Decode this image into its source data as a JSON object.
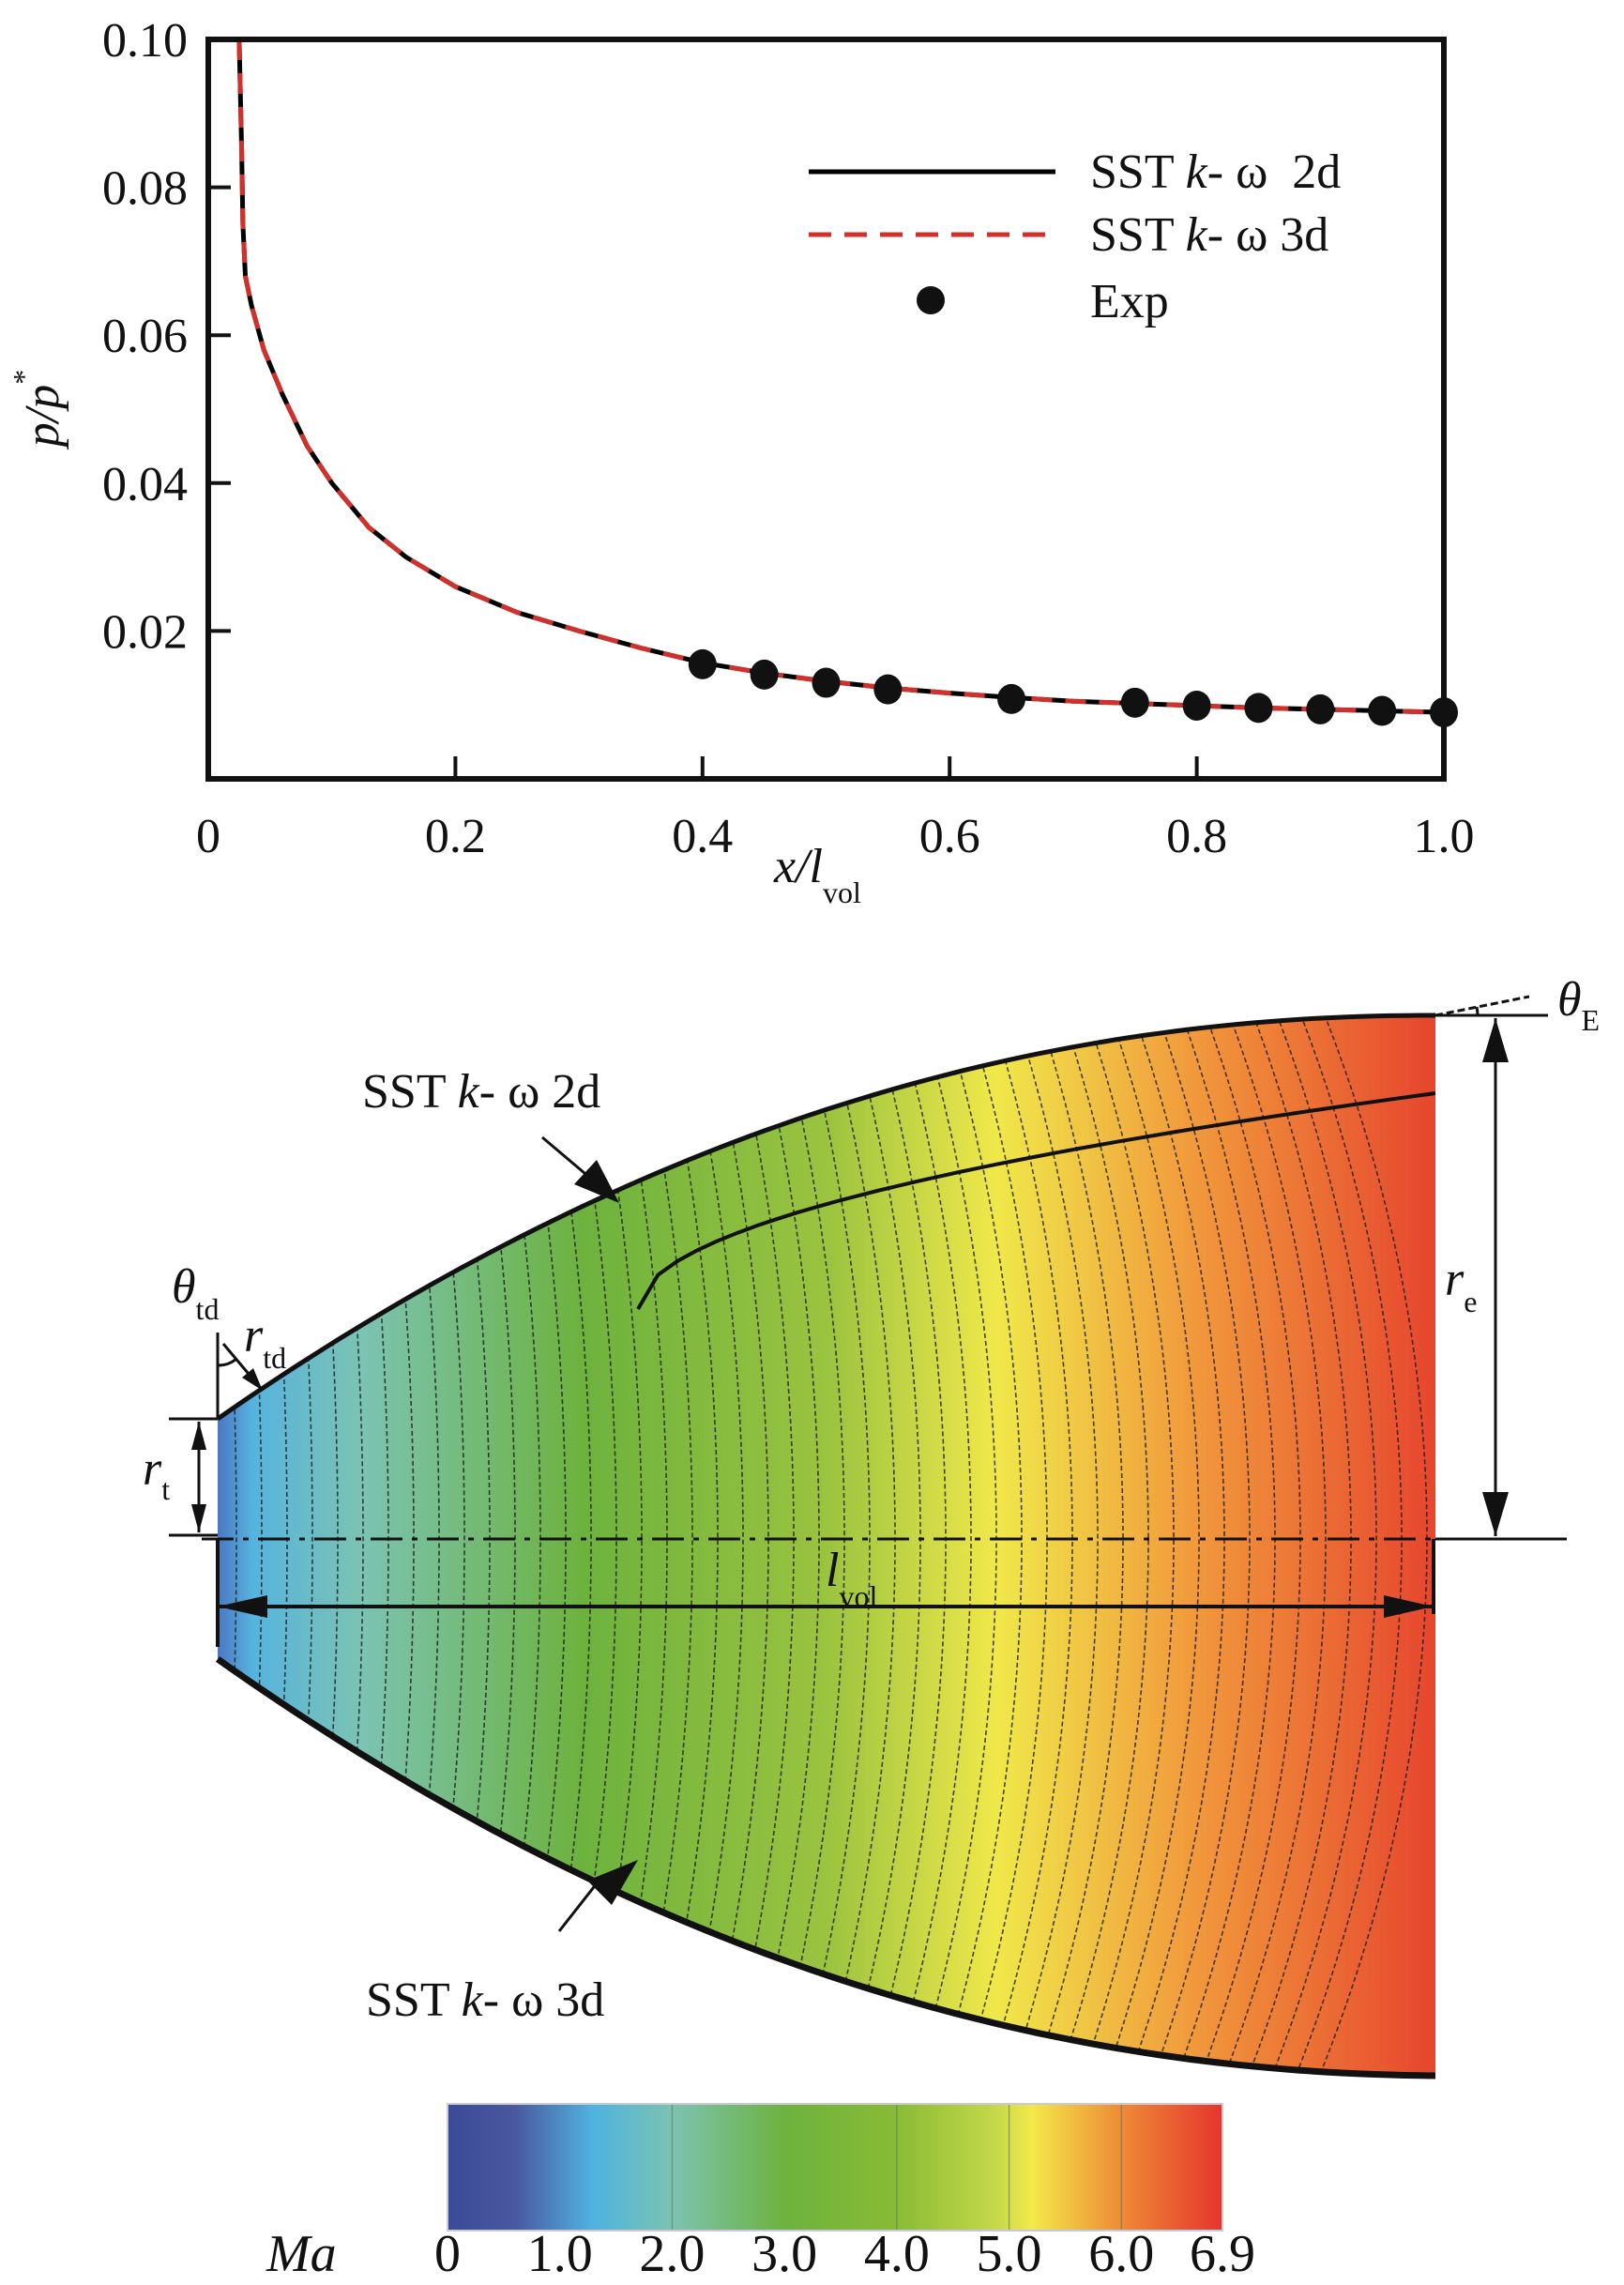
{
  "chart_data": [
    {
      "type": "line",
      "title": "",
      "xlabel": "x/l",
      "xlabel_sub": "vol",
      "ylabel": "p/p",
      "ylabel_sup": "*",
      "xlim": [
        0,
        1.0
      ],
      "ylim": [
        0,
        0.1
      ],
      "x_ticks": [
        0,
        0.2,
        0.4,
        0.6,
        0.8,
        1.0
      ],
      "x_tick_labels": [
        "0",
        "0.2",
        "0.4",
        "0.6",
        "0.8",
        "1.0"
      ],
      "y_ticks": [
        0.02,
        0.04,
        0.06,
        0.08,
        0.1
      ],
      "y_tick_labels": [
        "0.02",
        "0.04",
        "0.06",
        "0.08",
        "0.10"
      ],
      "grid": false,
      "legend_position": "top-right",
      "series": [
        {
          "name": "SST k- ω 2d",
          "name_parts": [
            "SST ",
            "k",
            "- ω  2d"
          ],
          "style": "solid",
          "color": "#000000",
          "x": [
            0.025,
            0.027,
            0.028,
            0.03,
            0.035,
            0.045,
            0.06,
            0.08,
            0.1,
            0.13,
            0.16,
            0.2,
            0.25,
            0.3,
            0.35,
            0.4,
            0.45,
            0.5,
            0.55,
            0.6,
            0.65,
            0.7,
            0.75,
            0.8,
            0.85,
            0.9,
            0.95,
            1.0
          ],
          "y": [
            0.1,
            0.085,
            0.075,
            0.068,
            0.064,
            0.058,
            0.052,
            0.045,
            0.04,
            0.034,
            0.03,
            0.026,
            0.0225,
            0.02,
            0.0177,
            0.0157,
            0.0143,
            0.0132,
            0.0123,
            0.0116,
            0.011,
            0.0105,
            0.0102,
            0.0099,
            0.0096,
            0.0094,
            0.0092,
            0.009
          ]
        },
        {
          "name": "SST k- ω 3d",
          "name_parts": [
            "SST ",
            "k",
            "- ω  3d"
          ],
          "style": "dashed",
          "color": "#d0312d",
          "x": [
            0.025,
            0.027,
            0.028,
            0.03,
            0.035,
            0.045,
            0.06,
            0.08,
            0.1,
            0.13,
            0.16,
            0.2,
            0.25,
            0.3,
            0.35,
            0.4,
            0.45,
            0.5,
            0.55,
            0.6,
            0.65,
            0.7,
            0.75,
            0.8,
            0.85,
            0.9,
            0.95,
            1.0
          ],
          "y": [
            0.1,
            0.085,
            0.075,
            0.068,
            0.064,
            0.058,
            0.052,
            0.045,
            0.04,
            0.034,
            0.03,
            0.026,
            0.0225,
            0.02,
            0.0177,
            0.0157,
            0.0143,
            0.0132,
            0.0123,
            0.0116,
            0.011,
            0.0105,
            0.0102,
            0.0099,
            0.0096,
            0.0094,
            0.0092,
            0.009
          ]
        },
        {
          "name": "Exp",
          "name_parts": [
            "Exp",
            "",
            ""
          ],
          "style": "markers",
          "color": "#111111",
          "x": [
            0.4,
            0.45,
            0.5,
            0.55,
            0.65,
            0.75,
            0.8,
            0.85,
            0.9,
            0.95,
            1.0
          ],
          "y": [
            0.0155,
            0.0141,
            0.013,
            0.0121,
            0.0108,
            0.0103,
            0.0099,
            0.0096,
            0.0094,
            0.0092,
            0.009
          ]
        }
      ]
    },
    {
      "type": "heatmap",
      "title": "",
      "description": "Mach number contour of nozzle flow field",
      "colorbar_label": "Ma",
      "colorbar_ticks": [
        "0",
        "1.0",
        "2.0",
        "3.0",
        "4.0",
        "5.0",
        "6.0",
        "6.9"
      ],
      "colorbar_range": [
        0,
        6.9
      ],
      "colorbar_stops": [
        {
          "value": 0,
          "color": "#3b4a97"
        },
        {
          "value": 0.6,
          "color": "#4a58a0"
        },
        {
          "value": 1.3,
          "color": "#4fb3df"
        },
        {
          "value": 2.0,
          "color": "#7bc3b2"
        },
        {
          "value": 3.0,
          "color": "#6db23e"
        },
        {
          "value": 4.0,
          "color": "#89bb35"
        },
        {
          "value": 4.9,
          "color": "#c6d94a"
        },
        {
          "value": 5.2,
          "color": "#f2e94a"
        },
        {
          "value": 6.0,
          "color": "#ee8a36"
        },
        {
          "value": 6.9,
          "color": "#e5352d"
        }
      ],
      "annotations": {
        "upper_wall": "SST k- ω 2d",
        "lower_wall": "SST k- ω 3d",
        "theta_td": {
          "sym": "θ",
          "sub": "td"
        },
        "r_td": {
          "sym": "r",
          "sub": "td"
        },
        "r_t": {
          "sym": "r",
          "sub": "t"
        },
        "l_vol": {
          "sym": "l",
          "sub": "vol"
        },
        "r_e": {
          "sym": "r",
          "sub": "e"
        },
        "theta_E": {
          "sym": "θ",
          "sub": "E"
        }
      }
    }
  ]
}
